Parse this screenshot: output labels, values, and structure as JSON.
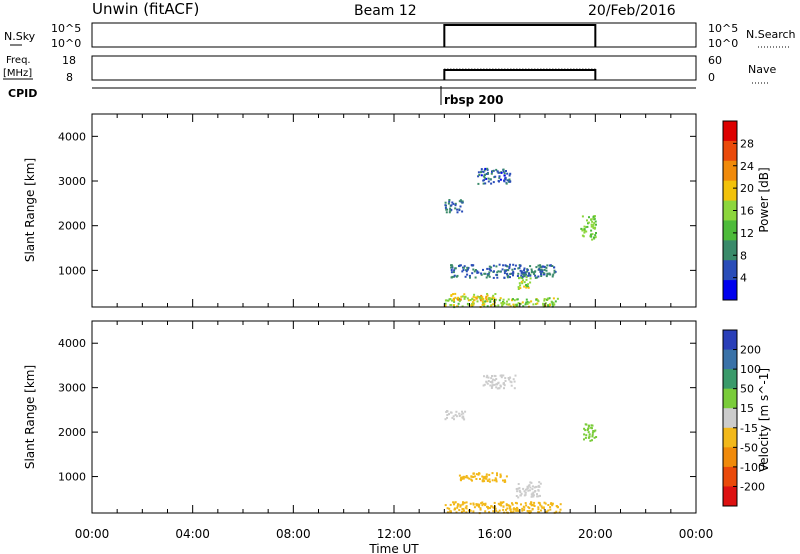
{
  "header": {
    "station": "Unwin (fitACF)",
    "beam": "Beam 12",
    "date": "20/Feb/2016"
  },
  "noise_panel": {
    "left_label": "N.Sky",
    "right_label": "N.Search",
    "left_ticks": [
      "10^5",
      "10^0"
    ],
    "right_ticks": [
      "10^5",
      "10^0"
    ]
  },
  "freq_panel": {
    "left_label_line1": "Freq.",
    "left_label_line2": "[MHz]",
    "right_label": "Nave",
    "left_ticks": [
      "18",
      "8"
    ],
    "right_ticks": [
      "60",
      "0"
    ]
  },
  "cpid": {
    "label": "CPID",
    "annotation": "rbsp 200"
  },
  "colors": {
    "power_scale": [
      "#0000ee",
      "#2a4db8",
      "#3a8a6a",
      "#4dbb3a",
      "#8cd63c",
      "#f2c20a",
      "#f08a0a",
      "#ea4a0a",
      "#dd0000"
    ],
    "velocity_scale": [
      "#2a3fb8",
      "#3a72a8",
      "#3a9a6a",
      "#7acc3a",
      "#cccccc",
      "#f2b81a",
      "#f08a0a",
      "#ea4a0a",
      "#dd1111"
    ]
  },
  "chart_data": [
    {
      "type": "heatmap",
      "title": "Power",
      "ylabel": "Slant Range [km]",
      "colorbar_label": "Power [dB]",
      "colorbar_ticks": [
        "4",
        "8",
        "12",
        "16",
        "20",
        "24",
        "28"
      ],
      "ylim": [
        180,
        4500
      ],
      "yticks": [
        "1000",
        "2000",
        "3000",
        "4000"
      ],
      "data_coverage_hours": [
        14.0,
        20.0
      ],
      "regions": [
        {
          "t": [
            14.0,
            18.5
          ],
          "range_km": [
            200,
            400
          ],
          "level": 16
        },
        {
          "t": [
            14.0,
            16.0
          ],
          "range_km": [
            350,
            500
          ],
          "level": 20
        },
        {
          "t": [
            16.9,
            17.4
          ],
          "range_km": [
            600,
            950
          ],
          "level": 16
        },
        {
          "t": [
            14.2,
            18.4
          ],
          "range_km": [
            850,
            1150
          ],
          "level": 6
        },
        {
          "t": [
            14.0,
            14.7
          ],
          "range_km": [
            2300,
            2600
          ],
          "level": 6
        },
        {
          "t": [
            15.3,
            16.6
          ],
          "range_km": [
            2950,
            3300
          ],
          "level": 5
        },
        {
          "t": [
            19.4,
            20.0
          ],
          "range_km": [
            1700,
            2250
          ],
          "level": 14
        }
      ]
    },
    {
      "type": "heatmap",
      "title": "Velocity",
      "ylabel": "Slant Range [km]",
      "colorbar_label": "Velocity [m s^-1]",
      "colorbar_ticks": [
        "200",
        "100",
        "50",
        "15",
        "-15",
        "-50",
        "-100",
        "-200"
      ],
      "ylim": [
        180,
        4500
      ],
      "yticks": [
        "1000",
        "2000",
        "3000",
        "4000"
      ],
      "xlabel": "Time UT",
      "xticks": [
        "00:00",
        "04:00",
        "08:00",
        "12:00",
        "16:00",
        "20:00",
        "00:00"
      ],
      "xlim": [
        0,
        24
      ],
      "data_coverage_hours": [
        14.0,
        20.0
      ],
      "regions": [
        {
          "t": [
            14.0,
            18.6
          ],
          "range_km": [
            200,
            450
          ],
          "velocity": -40
        },
        {
          "t": [
            16.8,
            17.8
          ],
          "range_km": [
            550,
            900
          ],
          "velocity": 0
        },
        {
          "t": [
            14.5,
            16.5
          ],
          "range_km": [
            900,
            1100
          ],
          "velocity": -40
        },
        {
          "t": [
            14.0,
            14.8
          ],
          "range_km": [
            2300,
            2500
          ],
          "velocity": 0
        },
        {
          "t": [
            15.5,
            16.8
          ],
          "range_km": [
            3000,
            3300
          ],
          "velocity": 10
        },
        {
          "t": [
            19.5,
            20.0
          ],
          "range_km": [
            1800,
            2200
          ],
          "velocity": 20
        }
      ]
    }
  ]
}
